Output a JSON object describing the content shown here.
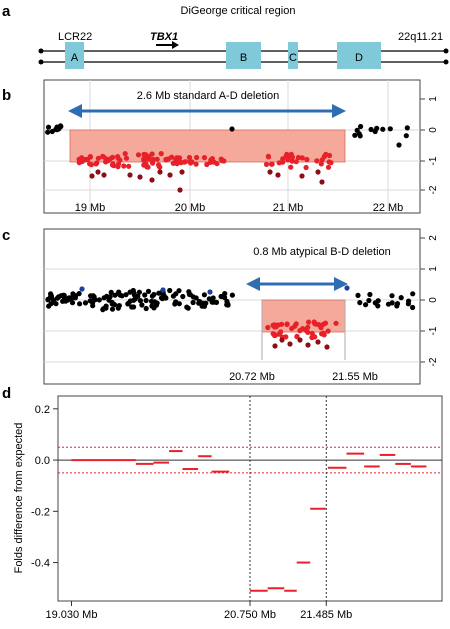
{
  "panel_labels": {
    "a": "a",
    "b": "b",
    "c": "c",
    "d": "d"
  },
  "panel_a": {
    "title": "DiGeorge critical region",
    "left_label": "LCR22",
    "right_label": "22q11.21",
    "gene": "TBX1",
    "blocks": [
      "A",
      "B",
      "C",
      "D"
    ]
  },
  "panel_b": {
    "annotation": "2.6 Mb standard A-D deletion",
    "x_ticks": [
      "19 Mb",
      "20 Mb",
      "21 Mb",
      "22 Mb"
    ],
    "y_ticks": [
      "1",
      "0",
      "-1",
      "-2"
    ]
  },
  "panel_c": {
    "annotation": "0.8 Mb atypical B-D deletion",
    "x_ticks": [
      "20.72 Mb",
      "21.55 Mb"
    ],
    "y_ticks": [
      "2",
      "1",
      "0",
      "-1",
      "-2"
    ]
  },
  "colors": {
    "block": "#7fc9d9",
    "deletion_box": "#f5a99a",
    "arrow": "#2f6db3",
    "point_black": "#000000",
    "point_red": "#e8202a",
    "point_darkred": "#8b0f14",
    "point_blue": "#1f3f9a",
    "segment": "#e8202a"
  },
  "chart_data": {
    "type": "line",
    "title": "",
    "xlabel": "",
    "ylabel": "Folds difference from expected",
    "x_ticks": [
      "19.030 Mb",
      "20.750 Mb",
      "21.485 Mb"
    ],
    "y_ticks": [
      "0.2",
      "0.0",
      "-0.2",
      "-0.4"
    ],
    "ylim": [
      -0.55,
      0.25
    ],
    "xlim": [
      18.9,
      22.6
    ],
    "threshold_lines": [
      0.05,
      -0.05
    ],
    "vertical_lines": [
      20.75,
      21.485
    ],
    "grid": false,
    "segments": [
      {
        "x0": 19.03,
        "x1": 19.35,
        "y": 0.0
      },
      {
        "x0": 19.35,
        "x1": 19.65,
        "y": 0.0
      },
      {
        "x0": 19.65,
        "x1": 19.82,
        "y": -0.015
      },
      {
        "x0": 19.82,
        "x1": 19.97,
        "y": -0.01
      },
      {
        "x0": 19.97,
        "x1": 20.1,
        "y": 0.035
      },
      {
        "x0": 20.1,
        "x1": 20.25,
        "y": -0.035
      },
      {
        "x0": 20.25,
        "x1": 20.38,
        "y": 0.015
      },
      {
        "x0": 20.38,
        "x1": 20.55,
        "y": -0.045
      },
      {
        "x0": 20.75,
        "x1": 20.92,
        "y": -0.51
      },
      {
        "x0": 20.92,
        "x1": 21.08,
        "y": -0.5
      },
      {
        "x0": 21.08,
        "x1": 21.2,
        "y": -0.51
      },
      {
        "x0": 21.2,
        "x1": 21.33,
        "y": -0.4
      },
      {
        "x0": 21.33,
        "x1": 21.48,
        "y": -0.19
      },
      {
        "x0": 21.5,
        "x1": 21.68,
        "y": -0.03
      },
      {
        "x0": 21.68,
        "x1": 21.85,
        "y": 0.025
      },
      {
        "x0": 21.85,
        "x1": 22.0,
        "y": -0.025
      },
      {
        "x0": 22.0,
        "x1": 22.15,
        "y": 0.02
      },
      {
        "x0": 22.15,
        "x1": 22.3,
        "y": -0.015
      },
      {
        "x0": 22.3,
        "x1": 22.45,
        "y": -0.025
      }
    ]
  }
}
